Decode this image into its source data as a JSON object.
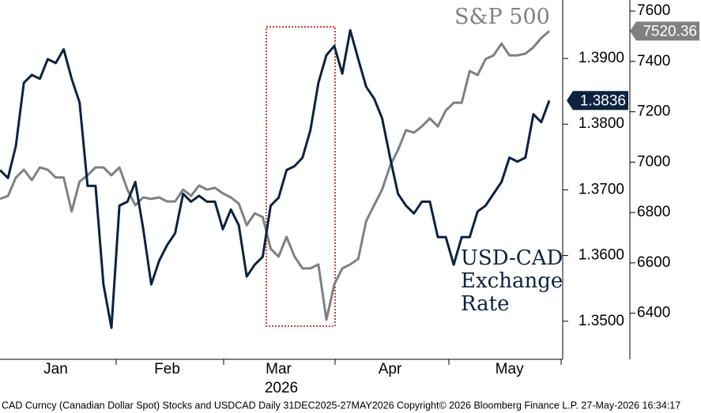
{
  "chart_data": {
    "type": "line",
    "x_year_label": "2026",
    "footer": "CAD Curncy (Canadian Dollar Spot) Stocks and USDCAD Daily 31DEC2025-27MAY2026 Copyright© 2026 Bloomberg Finance L.P. 27-May-2026 16:34:17",
    "categories": [
      null,
      null,
      null,
      null,
      null,
      null,
      null,
      "Jan",
      null,
      null,
      null,
      null,
      null,
      null,
      null,
      null,
      null,
      null,
      null,
      null,
      null,
      "Feb",
      null,
      null,
      null,
      null,
      null,
      null,
      null,
      null,
      null,
      null,
      null,
      null,
      null,
      "Mar",
      null,
      null,
      null,
      null,
      null,
      null,
      null,
      null,
      null,
      null,
      null,
      null,
      null,
      "Apr",
      null,
      null,
      null,
      null,
      null,
      null,
      null,
      null,
      null,
      null,
      null,
      null,
      null,
      null,
      "May",
      null,
      null,
      null,
      null,
      null
    ],
    "series": [
      {
        "name": "USD-CAD Exchange Rate",
        "color": "#0d2240",
        "axis": "y",
        "values": [
          1.373,
          1.3718,
          1.3767,
          1.3863,
          1.3875,
          1.3869,
          1.3899,
          1.3893,
          1.3914,
          1.3869,
          1.3833,
          1.3706,
          1.3706,
          1.3556,
          1.349,
          1.3676,
          1.3682,
          1.3712,
          1.364,
          1.3556,
          1.3592,
          1.3616,
          1.3634,
          1.3694,
          1.3682,
          1.3691,
          1.3682,
          1.3682,
          1.364,
          1.367,
          1.3646,
          1.3568,
          1.3586,
          1.3598,
          1.3676,
          1.3688,
          1.373,
          1.3736,
          1.3749,
          1.3791,
          1.3863,
          1.3905,
          1.3919,
          1.3877,
          1.3943,
          1.3899,
          1.3857,
          1.3839,
          1.3809,
          1.3749,
          1.3694,
          1.3676,
          1.3664,
          1.3682,
          1.3682,
          1.3628,
          1.3628,
          1.3586,
          1.3628,
          1.3628,
          1.3667,
          1.3676,
          1.3694,
          1.3712,
          1.3749,
          1.3743,
          1.3749,
          1.3815,
          1.3803,
          1.3836
        ]
      },
      {
        "name": "S&P 500",
        "color": "#808080",
        "axis": "y2",
        "values": [
          6854,
          6866,
          6939,
          6970,
          6929,
          6979,
          6970,
          6939,
          6939,
          6804,
          6923,
          6948,
          6979,
          6979,
          6948,
          6979,
          6891,
          6829,
          6860,
          6854,
          6860,
          6844,
          6844,
          6891,
          6866,
          6907,
          6891,
          6898,
          6876,
          6860,
          6835,
          6750,
          6797,
          6782,
          6656,
          6625,
          6703,
          6625,
          6578,
          6578,
          6594,
          6374,
          6515,
          6578,
          6594,
          6616,
          6766,
          6829,
          6891,
          6986,
          7048,
          7127,
          7117,
          7142,
          7174,
          7142,
          7205,
          7236,
          7236,
          7362,
          7346,
          7409,
          7424,
          7471,
          7424,
          7424,
          7431,
          7456,
          7493,
          7520.36
        ]
      }
    ],
    "ylim": [
      1.3442,
      1.3989
    ],
    "yticks": [
      {
        "value": 1.35,
        "label": "1.3500"
      },
      {
        "value": 1.36,
        "label": "1.3600"
      },
      {
        "value": 1.37,
        "label": "1.3700"
      },
      {
        "value": 1.38,
        "label": "1.3800"
      },
      {
        "value": 1.39,
        "label": "1.3900"
      }
    ],
    "y2lim": [
      6217,
      7644
    ],
    "y2ticks": [
      6400,
      6600,
      6800,
      7000,
      7200,
      7400,
      7600
    ],
    "grid": false
  }
}
